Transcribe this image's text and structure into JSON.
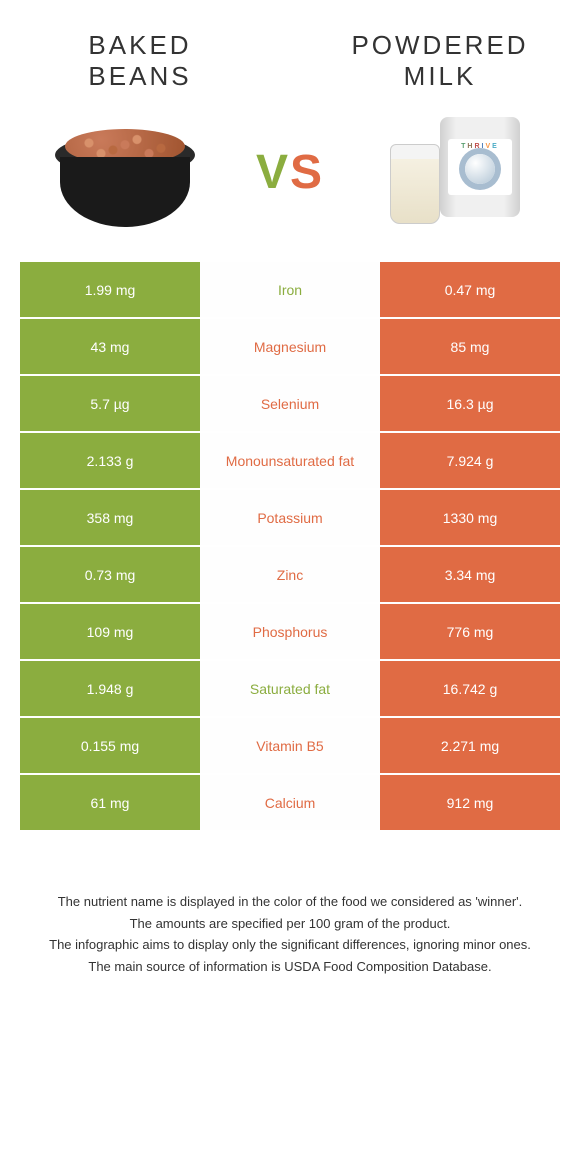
{
  "header": {
    "left_title": "BAKED\nBEANS",
    "right_title": "POWDERED\nMILK",
    "vs_v": "V",
    "vs_s": "S"
  },
  "colors": {
    "left": "#8bad3f",
    "right": "#e06b44",
    "mid_bg": "#ffffff"
  },
  "rows": [
    {
      "left": "1.99 mg",
      "mid": "Iron",
      "right": "0.47 mg",
      "winner": "left"
    },
    {
      "left": "43 mg",
      "mid": "Magnesium",
      "right": "85 mg",
      "winner": "right"
    },
    {
      "left": "5.7 µg",
      "mid": "Selenium",
      "right": "16.3 µg",
      "winner": "right"
    },
    {
      "left": "2.133 g",
      "mid": "Monounsaturated fat",
      "right": "7.924 g",
      "winner": "right"
    },
    {
      "left": "358 mg",
      "mid": "Potassium",
      "right": "1330 mg",
      "winner": "right"
    },
    {
      "left": "0.73 mg",
      "mid": "Zinc",
      "right": "3.34 mg",
      "winner": "right"
    },
    {
      "left": "109 mg",
      "mid": "Phosphorus",
      "right": "776 mg",
      "winner": "right"
    },
    {
      "left": "1.948 g",
      "mid": "Saturated fat",
      "right": "16.742 g",
      "winner": "left"
    },
    {
      "left": "0.155 mg",
      "mid": "Vitamin B5",
      "right": "2.271 mg",
      "winner": "right"
    },
    {
      "left": "61 mg",
      "mid": "Calcium",
      "right": "912 mg",
      "winner": "right"
    }
  ],
  "footer": {
    "line1": "The nutrient name is displayed in the color of the food we considered as 'winner'.",
    "line2": "The amounts are specified per 100 gram of the product.",
    "line3": "The infographic aims to display only the significant differences, ignoring minor ones.",
    "line4": "The main source of information is USDA Food Composition Database."
  }
}
